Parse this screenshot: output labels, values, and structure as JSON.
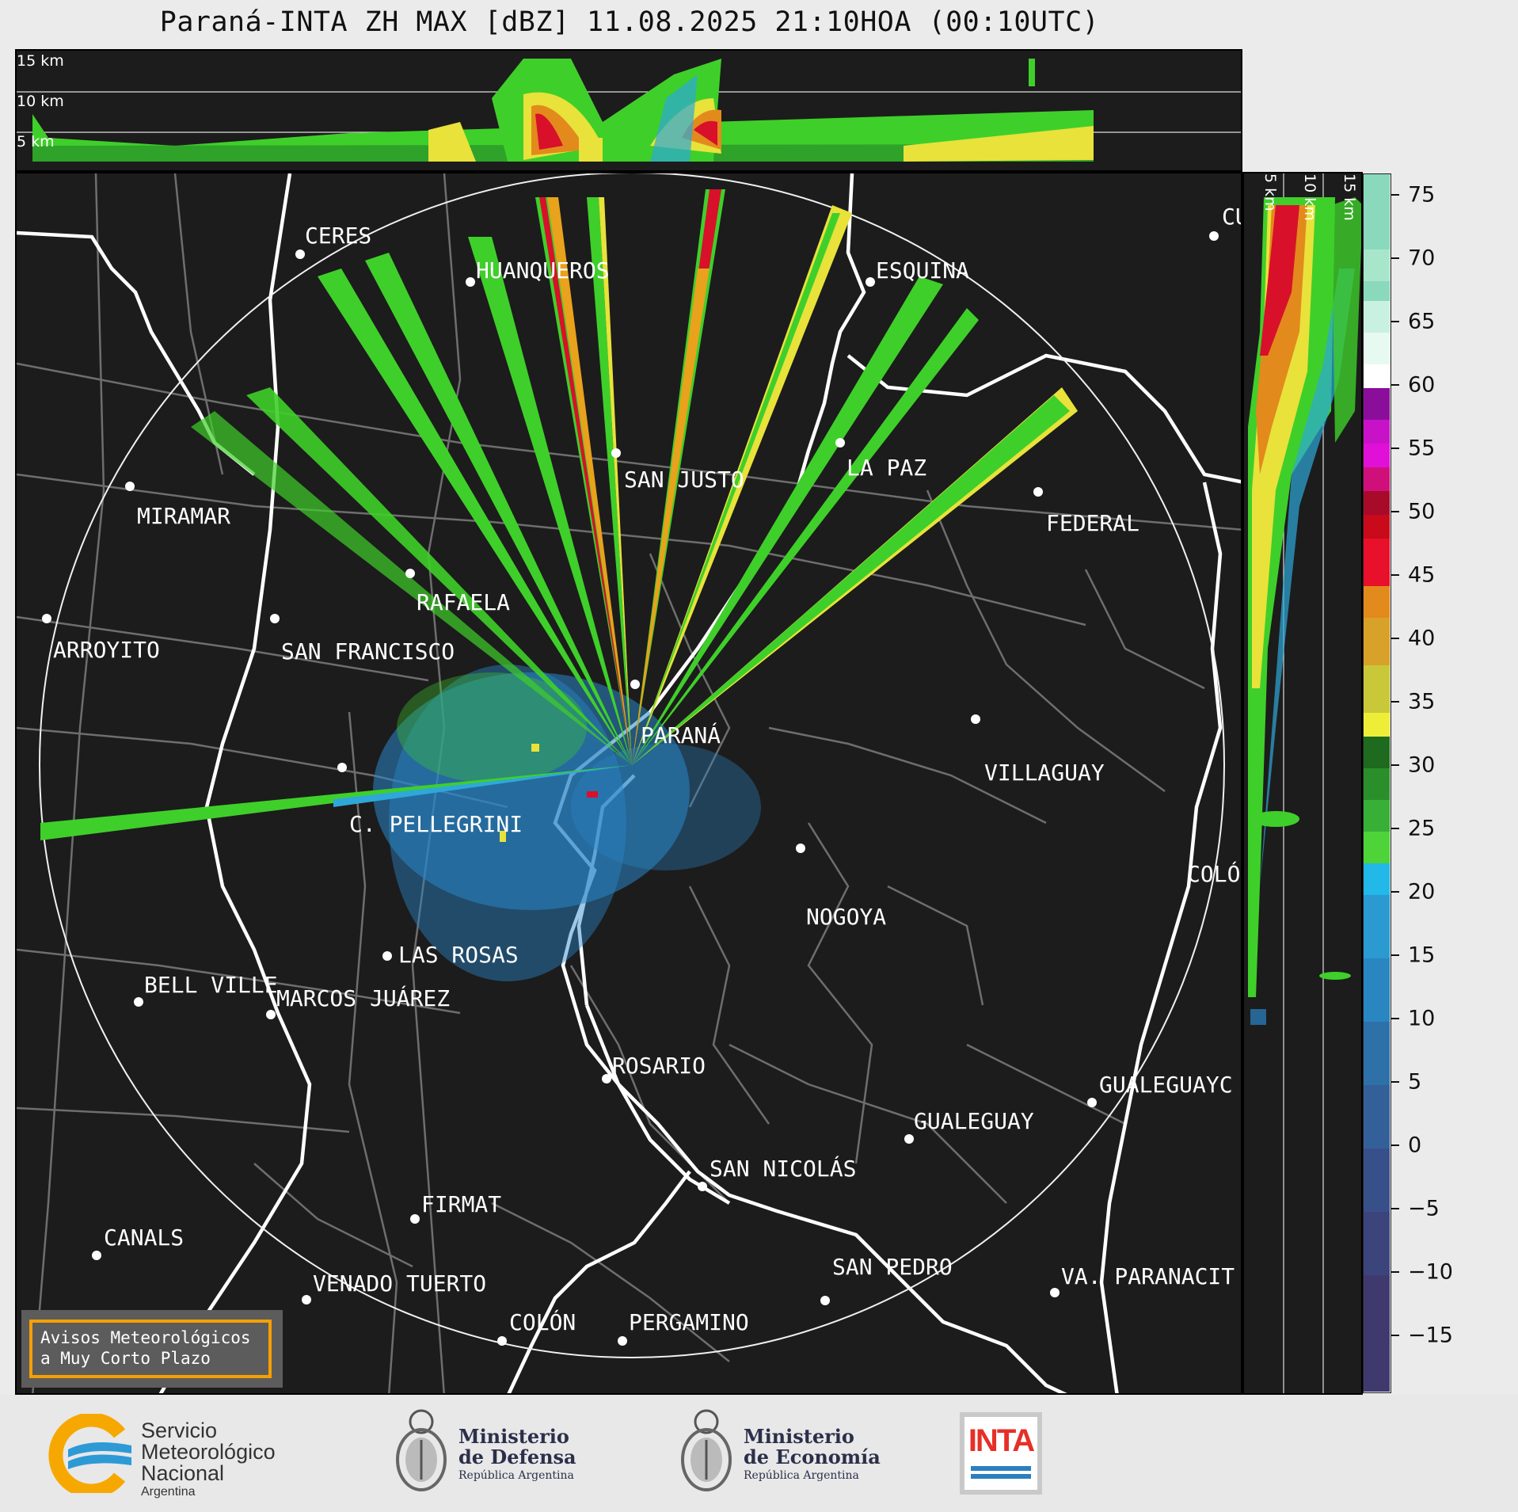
{
  "title": "Paraná-INTA ZH MAX [dBZ] 11.08.2025 21:10HOA (00:10UTC)",
  "top_panel": {
    "height_labels": [
      "15 km",
      "10 km",
      "5 km"
    ]
  },
  "side_panel": {
    "height_labels": [
      "5 km",
      "10 km",
      "15 km"
    ]
  },
  "colorbar": {
    "ticks": [
      "75",
      "70",
      "65",
      "60",
      "55",
      "50",
      "45",
      "40",
      "35",
      "30",
      "25",
      "20",
      "15",
      "10",
      "5",
      "0",
      "−5",
      "−10",
      "−15"
    ],
    "range": [
      -20,
      77
    ]
  },
  "map": {
    "cities": [
      {
        "name": "CERES"
      },
      {
        "name": "HUANQUEROS"
      },
      {
        "name": "ESQUINA"
      },
      {
        "name": "CU"
      },
      {
        "name": "SAN JUSTO"
      },
      {
        "name": "LA PAZ"
      },
      {
        "name": "FEDERAL"
      },
      {
        "name": "MIRAMAR"
      },
      {
        "name": "RAFAELA"
      },
      {
        "name": "ARROYITO"
      },
      {
        "name": "SAN FRANCISCO"
      },
      {
        "name": "PARANÁ"
      },
      {
        "name": "VILLAGUAY"
      },
      {
        "name": "C. PELLEGRINI"
      },
      {
        "name": "COLÓ"
      },
      {
        "name": "NOGOYA"
      },
      {
        "name": "LAS ROSAS"
      },
      {
        "name": "BELL VILLE"
      },
      {
        "name": "MARCOS JUÁREZ"
      },
      {
        "name": "ROSARIO"
      },
      {
        "name": "GUALEGUAYC"
      },
      {
        "name": "GUALEGUAY"
      },
      {
        "name": "SAN NICOLÁS"
      },
      {
        "name": "FIRMAT"
      },
      {
        "name": "CANALS"
      },
      {
        "name": "SAN PEDRO"
      },
      {
        "name": "VENADO TUERTO"
      },
      {
        "name": "VA. PARANACIT"
      },
      {
        "name": "COLÓN"
      },
      {
        "name": "PERGAMINO"
      }
    ]
  },
  "alert_box": {
    "line1": "Avisos Meteorológicos",
    "line2": "a Muy Corto Plazo",
    "border_color": "#f5a000"
  },
  "footer": {
    "smn": {
      "line1": "Servicio",
      "line2": "Meteorológico",
      "line3": "Nacional",
      "line4": "Argentina"
    },
    "defensa": {
      "line1": "Ministerio",
      "line2": "de Defensa",
      "line3": "República Argentina"
    },
    "economia": {
      "line1": "Ministerio",
      "line2": "de Economía",
      "line3": "República Argentina"
    },
    "inta": {
      "label": "INTA"
    }
  }
}
